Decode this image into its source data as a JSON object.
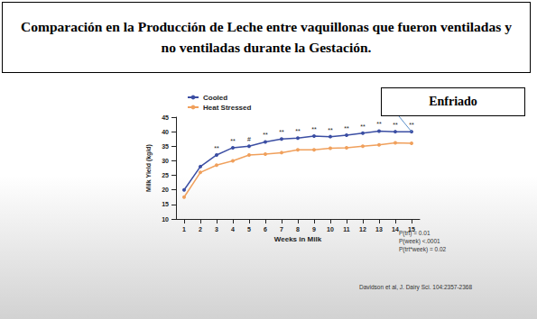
{
  "chart_data": {
    "type": "line",
    "title": "Comparación en la Producción de Leche entre vaquillonas que fueron ventiladas y no ventiladas durante la Gestación.",
    "callout": "Enfriado",
    "x_label": "Weeks in Milk",
    "y_label": "Milk Yield (kg/d)",
    "categories": [
      "1",
      "2",
      "3",
      "4",
      "5",
      "6",
      "7",
      "8",
      "9",
      "10",
      "11",
      "12",
      "13",
      "14",
      "15"
    ],
    "series": [
      {
        "name": "Cooled",
        "color": "#3b4ea3",
        "marker": "circle",
        "values": [
          20,
          28,
          32,
          34.5,
          35,
          36.5,
          37.5,
          37.8,
          38.5,
          38.3,
          38.8,
          39.5,
          40.2,
          40,
          40
        ]
      },
      {
        "name": "Heat Stressed",
        "color": "#f0a05c",
        "marker": "circle",
        "values": [
          17.5,
          26,
          28.5,
          30,
          32,
          32.3,
          32.8,
          33.8,
          33.8,
          34.3,
          34.5,
          35,
          35.5,
          36.2,
          36
        ]
      }
    ],
    "significance": [
      null,
      null,
      "**",
      "**",
      "#",
      "**",
      "**",
      "**",
      "**",
      "**",
      "**",
      "**",
      "**",
      "**",
      "**"
    ],
    "ylim": [
      10,
      45
    ],
    "yticks": [
      10,
      15,
      20,
      25,
      30,
      35,
      40,
      45
    ],
    "grid": false,
    "legend": "top-left",
    "annotations": [
      "P(trt) = 0.01",
      "P(week) <.0001",
      "P(trt*week) = 0.02"
    ],
    "source": "Davidson et al, J. Dairy Sci. 104:2357-2368"
  }
}
